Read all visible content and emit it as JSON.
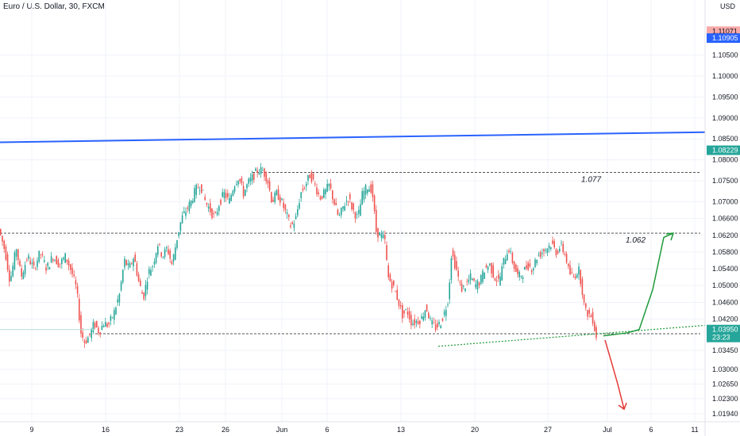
{
  "header": {
    "title": "Euro / U.S. Dollar, 30, FXCM",
    "currency": "USD"
  },
  "colors": {
    "candle_up": "#26a69a",
    "candle_down": "#ef5350",
    "trendline": "#2962ff",
    "projection_up": "#1e9a3a",
    "projection_down": "#e53935",
    "tag_red": "#f7a9a8",
    "tag_blue": "#2962ff",
    "tag_green": "#26a69a"
  },
  "chart_data": {
    "type": "candlestick",
    "title": "Euro / U.S. Dollar, 30, FXCM",
    "ylim": [
      1.0175,
      1.1155
    ],
    "y_ticks": [
      1.0194,
      1.023,
      1.0265,
      1.03,
      1.0345,
      1.042,
      1.046,
      1.05,
      1.054,
      1.058,
      1.062,
      1.066,
      1.07,
      1.075,
      1.08,
      1.085,
      1.09,
      1.095,
      1.1,
      1.105
    ],
    "y_tick_labels": [
      "1.01940",
      "1.02300",
      "1.02650",
      "1.03000",
      "1.03450",
      "1.04200",
      "1.04600",
      "1.05000",
      "1.05400",
      "1.05800",
      "1.06200",
      "1.06600",
      "1.07000",
      "1.07500",
      "1.08000",
      "1.08500",
      "1.09000",
      "1.09500",
      "1.10000",
      "1.10500"
    ],
    "x_ticks": [
      {
        "label": "9",
        "t": 40
      },
      {
        "label": "16",
        "t": 133
      },
      {
        "label": "23",
        "t": 226
      },
      {
        "label": "26",
        "t": 284
      },
      {
        "label": "Jun",
        "t": 355
      },
      {
        "label": "6",
        "t": 412
      },
      {
        "label": "13",
        "t": 505
      },
      {
        "label": "20",
        "t": 598
      },
      {
        "label": "27",
        "t": 690
      },
      {
        "label": "Jul",
        "t": 765
      },
      {
        "label": "6",
        "t": 820
      },
      {
        "label": "11",
        "t": 875
      }
    ],
    "price_path": [
      [
        0,
        1.0635
      ],
      [
        8,
        1.058
      ],
      [
        14,
        1.051
      ],
      [
        22,
        1.059
      ],
      [
        28,
        1.052
      ],
      [
        36,
        1.057
      ],
      [
        44,
        1.054
      ],
      [
        52,
        1.058
      ],
      [
        60,
        1.054
      ],
      [
        68,
        1.057
      ],
      [
        76,
        1.055
      ],
      [
        84,
        1.057
      ],
      [
        92,
        1.053
      ],
      [
        98,
        1.049
      ],
      [
        103,
        1.039
      ],
      [
        108,
        1.0365
      ],
      [
        114,
        1.038
      ],
      [
        120,
        1.041
      ],
      [
        126,
        1.039
      ],
      [
        132,
        1.041
      ],
      [
        138,
        1.0405
      ],
      [
        145,
        1.0435
      ],
      [
        152,
        1.048
      ],
      [
        158,
        1.056
      ],
      [
        164,
        1.054
      ],
      [
        170,
        1.057
      ],
      [
        176,
        1.051
      ],
      [
        182,
        1.047
      ],
      [
        188,
        1.053
      ],
      [
        194,
        1.055
      ],
      [
        200,
        1.06
      ],
      [
        206,
        1.057
      ],
      [
        212,
        1.059
      ],
      [
        218,
        1.055
      ],
      [
        224,
        1.061
      ],
      [
        230,
        1.066
      ],
      [
        236,
        1.068
      ],
      [
        242,
        1.07
      ],
      [
        248,
        1.073
      ],
      [
        254,
        1.074
      ],
      [
        260,
        1.07
      ],
      [
        266,
        1.068
      ],
      [
        272,
        1.066
      ],
      [
        278,
        1.07
      ],
      [
        284,
        1.072
      ],
      [
        290,
        1.07
      ],
      [
        296,
        1.074
      ],
      [
        302,
        1.076
      ],
      [
        308,
        1.072
      ],
      [
        314,
        1.0745
      ],
      [
        320,
        1.076
      ],
      [
        326,
        1.0775
      ],
      [
        332,
        1.0775
      ],
      [
        338,
        1.0755
      ],
      [
        344,
        1.07
      ],
      [
        350,
        1.072
      ],
      [
        356,
        1.07
      ],
      [
        362,
        1.067
      ],
      [
        368,
        1.064
      ],
      [
        374,
        1.066
      ],
      [
        380,
        1.072
      ],
      [
        386,
        1.074
      ],
      [
        392,
        1.0765
      ],
      [
        398,
        1.074
      ],
      [
        404,
        1.071
      ],
      [
        410,
        1.072
      ],
      [
        416,
        1.074
      ],
      [
        422,
        1.07
      ],
      [
        428,
        1.066
      ],
      [
        434,
        1.069
      ],
      [
        440,
        1.071
      ],
      [
        446,
        1.068
      ],
      [
        452,
        1.066
      ],
      [
        458,
        1.072
      ],
      [
        464,
        1.0735
      ],
      [
        470,
        1.073
      ],
      [
        475,
        1.063
      ],
      [
        480,
        1.062
      ],
      [
        486,
        1.061
      ],
      [
        490,
        1.052
      ],
      [
        496,
        1.05
      ],
      [
        502,
        1.047
      ],
      [
        508,
        1.043
      ],
      [
        514,
        1.044
      ],
      [
        520,
        1.041
      ],
      [
        526,
        1.0415
      ],
      [
        532,
        1.042
      ],
      [
        538,
        1.045
      ],
      [
        544,
        1.041
      ],
      [
        550,
        1.04
      ],
      [
        556,
        1.041
      ],
      [
        562,
        1.044
      ],
      [
        566,
        1.047
      ],
      [
        570,
        1.058
      ],
      [
        576,
        1.054
      ],
      [
        582,
        1.049
      ],
      [
        588,
        1.05
      ],
      [
        594,
        1.052
      ],
      [
        600,
        1.05
      ],
      [
        606,
        1.051
      ],
      [
        612,
        1.054
      ],
      [
        618,
        1.055
      ],
      [
        624,
        1.052
      ],
      [
        630,
        1.051
      ],
      [
        636,
        1.056
      ],
      [
        642,
        1.059
      ],
      [
        648,
        1.055
      ],
      [
        654,
        1.052
      ],
      [
        660,
        1.053
      ],
      [
        666,
        1.055
      ],
      [
        672,
        1.054
      ],
      [
        678,
        1.057
      ],
      [
        684,
        1.058
      ],
      [
        690,
        1.059
      ],
      [
        696,
        1.06
      ],
      [
        702,
        1.058
      ],
      [
        708,
        1.0595
      ],
      [
        714,
        1.057
      ],
      [
        718,
        1.053
      ],
      [
        724,
        1.052
      ],
      [
        730,
        1.054
      ],
      [
        734,
        1.05
      ],
      [
        738,
        1.044
      ],
      [
        744,
        1.043
      ],
      [
        748,
        1.042
      ],
      [
        752,
        1.038
      ]
    ],
    "last_price": {
      "value": 1.0395,
      "label": "1.03950",
      "countdown": "23:23"
    },
    "price_tags": [
      {
        "value": 1.11071,
        "label": "1.11071",
        "color": "#f7a9a8",
        "text_color": "#131722"
      },
      {
        "value": 1.10905,
        "label": "1.10905",
        "color": "#2962ff",
        "text_color": "#ffffff"
      },
      {
        "value": 1.08229,
        "label": "1.08229",
        "color": "#26a69a",
        "text_color": "#ffffff"
      }
    ],
    "levels": [
      {
        "t1": 318,
        "t2": 882,
        "y": 1.077,
        "label": "1.077",
        "label_t": 732
      },
      {
        "t1": 0,
        "t2": 882,
        "y": 1.0625,
        "label": "1.062",
        "label_t": 788
      },
      {
        "t1": 120,
        "t2": 882,
        "y": 1.0385,
        "label": "",
        "label_t": 0
      }
    ],
    "trendline": {
      "t1": 0,
      "y1": 1.0842,
      "t2": 888,
      "y2": 1.0866
    },
    "support_trendline": {
      "t1": 552,
      "y1": 1.0355,
      "t2": 888,
      "y2": 1.0405
    },
    "projection_up": [
      [
        760,
        1.038
      ],
      [
        790,
        1.0387
      ],
      [
        805,
        1.0395
      ],
      [
        822,
        1.049
      ],
      [
        836,
        1.0615
      ],
      [
        848,
        1.0625
      ]
    ],
    "projection_down": [
      [
        762,
        1.037
      ],
      [
        770,
        1.0318
      ],
      [
        778,
        1.0265
      ],
      [
        786,
        1.0205
      ]
    ]
  }
}
